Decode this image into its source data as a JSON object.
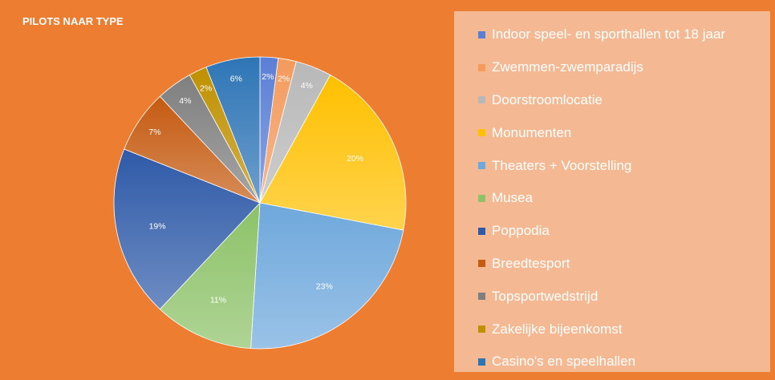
{
  "chart_data": {
    "type": "pie",
    "title": "PILOTS NAAR TYPE",
    "legend_position": "right",
    "slices": [
      {
        "label": "Indoor speel- en sporthallen tot 18 jaar",
        "value": 2,
        "value_label": "2%",
        "color": "#5b7fd6"
      },
      {
        "label": "Zwemmen-zwemparadijs",
        "value": 2,
        "value_label": "2%",
        "color": "#f39a5c"
      },
      {
        "label": "Doorstroomlocatie",
        "value": 4,
        "value_label": "4%",
        "color": "#b8b8b8"
      },
      {
        "label": "Monumenten",
        "value": 20,
        "value_label": "20%",
        "color": "#ffc000"
      },
      {
        "label": "Theaters + Voorstelling",
        "value": 23,
        "value_label": "23%",
        "color": "#6fa8dc"
      },
      {
        "label": "Musea",
        "value": 11,
        "value_label": "11%",
        "color": "#8cc268"
      },
      {
        "label": "Poppodia",
        "value": 19,
        "value_label": "19%",
        "color": "#2f5aa8"
      },
      {
        "label": "Breedtesport",
        "value": 7,
        "value_label": "7%",
        "color": "#c55a11"
      },
      {
        "label": "Topsportwedstrijd",
        "value": 4,
        "value_label": "4%",
        "color": "#7f7f7f"
      },
      {
        "label": "Zakelijke bijeenkomst",
        "value": 2,
        "value_label": "2%",
        "color": "#bf9000"
      },
      {
        "label": "Casino's en speelhallen",
        "value": 6,
        "value_label": "6%",
        "color": "#2e75b6"
      }
    ]
  }
}
